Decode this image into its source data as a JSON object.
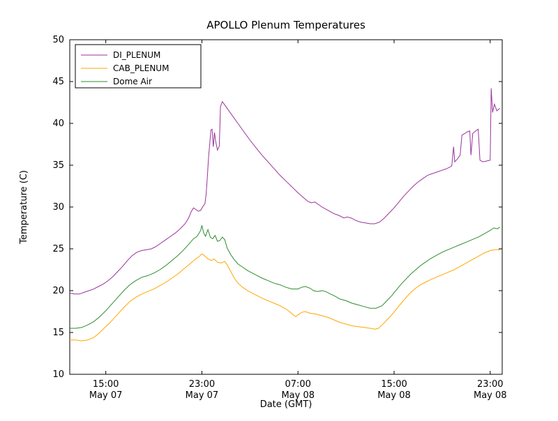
{
  "chart_data": {
    "type": "line",
    "title": "APOLLO Plenum Temperatures",
    "xlabel": "Date (GMT)",
    "ylabel": "Temperature (C)",
    "xlim": [
      0,
      36
    ],
    "ylim": [
      10,
      50
    ],
    "x_units": "hours from left edge of plot (left edge ~ May 07 12:00 GMT)",
    "grid": false,
    "legend_position": "upper left",
    "y_ticks": [
      10,
      15,
      20,
      25,
      30,
      35,
      40,
      45,
      50
    ],
    "x_ticks": [
      {
        "pos": 3,
        "time": "15:00",
        "date": "May 07"
      },
      {
        "pos": 11,
        "time": "23:00",
        "date": "May 07"
      },
      {
        "pos": 19,
        "time": "07:00",
        "date": "May 08"
      },
      {
        "pos": 27,
        "time": "15:00",
        "date": "May 08"
      },
      {
        "pos": 35,
        "time": "23:00",
        "date": "May 08"
      }
    ],
    "series": [
      {
        "name": "DI_PLENUM",
        "color": "#993399",
        "points": [
          [
            0,
            19.7
          ],
          [
            0.4,
            19.6
          ],
          [
            0.8,
            19.6
          ],
          [
            1.2,
            19.8
          ],
          [
            1.6,
            20.0
          ],
          [
            2.0,
            20.2
          ],
          [
            2.4,
            20.5
          ],
          [
            2.8,
            20.8
          ],
          [
            3.2,
            21.2
          ],
          [
            3.6,
            21.7
          ],
          [
            4.0,
            22.3
          ],
          [
            4.4,
            22.9
          ],
          [
            4.8,
            23.6
          ],
          [
            5.2,
            24.2
          ],
          [
            5.6,
            24.6
          ],
          [
            6.0,
            24.8
          ],
          [
            6.4,
            24.9
          ],
          [
            6.8,
            25.0
          ],
          [
            7.2,
            25.3
          ],
          [
            7.6,
            25.7
          ],
          [
            8.0,
            26.1
          ],
          [
            8.4,
            26.5
          ],
          [
            8.8,
            26.9
          ],
          [
            9.2,
            27.4
          ],
          [
            9.6,
            28.0
          ],
          [
            9.9,
            28.7
          ],
          [
            10.1,
            29.4
          ],
          [
            10.3,
            29.9
          ],
          [
            10.5,
            29.7
          ],
          [
            10.7,
            29.5
          ],
          [
            10.9,
            29.6
          ],
          [
            11.1,
            30.1
          ],
          [
            11.25,
            30.4
          ],
          [
            11.35,
            31.5
          ],
          [
            11.45,
            33.5
          ],
          [
            11.55,
            35.8
          ],
          [
            11.65,
            37.5
          ],
          [
            11.75,
            39.2
          ],
          [
            11.85,
            39.3
          ],
          [
            11.95,
            37.2
          ],
          [
            12.05,
            38.9
          ],
          [
            12.15,
            37.8
          ],
          [
            12.3,
            36.8
          ],
          [
            12.45,
            37.3
          ],
          [
            12.55,
            42.0
          ],
          [
            12.7,
            42.6
          ],
          [
            12.9,
            42.2
          ],
          [
            13.2,
            41.6
          ],
          [
            13.6,
            40.8
          ],
          [
            14.0,
            40.0
          ],
          [
            14.5,
            39.0
          ],
          [
            15.0,
            38.0
          ],
          [
            15.5,
            37.1
          ],
          [
            16.0,
            36.2
          ],
          [
            16.5,
            35.4
          ],
          [
            17.0,
            34.6
          ],
          [
            17.5,
            33.8
          ],
          [
            18.0,
            33.1
          ],
          [
            18.5,
            32.4
          ],
          [
            19.0,
            31.7
          ],
          [
            19.4,
            31.2
          ],
          [
            19.8,
            30.7
          ],
          [
            20.1,
            30.5
          ],
          [
            20.4,
            30.6
          ],
          [
            20.7,
            30.3
          ],
          [
            21.0,
            30.0
          ],
          [
            21.5,
            29.6
          ],
          [
            22.0,
            29.2
          ],
          [
            22.4,
            29.0
          ],
          [
            22.8,
            28.7
          ],
          [
            23.1,
            28.8
          ],
          [
            23.4,
            28.7
          ],
          [
            23.8,
            28.4
          ],
          [
            24.2,
            28.2
          ],
          [
            24.6,
            28.1
          ],
          [
            25.0,
            28.0
          ],
          [
            25.4,
            28.0
          ],
          [
            25.8,
            28.2
          ],
          [
            26.2,
            28.7
          ],
          [
            26.6,
            29.3
          ],
          [
            27.0,
            29.9
          ],
          [
            27.4,
            30.6
          ],
          [
            27.8,
            31.3
          ],
          [
            28.2,
            31.9
          ],
          [
            28.6,
            32.5
          ],
          [
            29.0,
            33.0
          ],
          [
            29.4,
            33.4
          ],
          [
            29.8,
            33.8
          ],
          [
            30.2,
            34.0
          ],
          [
            30.6,
            34.2
          ],
          [
            31.0,
            34.4
          ],
          [
            31.4,
            34.6
          ],
          [
            31.8,
            34.9
          ],
          [
            31.95,
            37.2
          ],
          [
            32.05,
            35.4
          ],
          [
            32.3,
            35.8
          ],
          [
            32.5,
            36.2
          ],
          [
            32.65,
            38.6
          ],
          [
            32.9,
            38.8
          ],
          [
            33.1,
            39.0
          ],
          [
            33.3,
            39.1
          ],
          [
            33.4,
            36.2
          ],
          [
            33.55,
            38.8
          ],
          [
            33.8,
            39.1
          ],
          [
            34.0,
            39.3
          ],
          [
            34.15,
            35.6
          ],
          [
            34.4,
            35.4
          ],
          [
            34.7,
            35.5
          ],
          [
            35.0,
            35.6
          ],
          [
            35.08,
            44.2
          ],
          [
            35.2,
            41.3
          ],
          [
            35.35,
            42.3
          ],
          [
            35.55,
            41.5
          ],
          [
            35.8,
            41.8
          ]
        ]
      },
      {
        "name": "CAB_PLENUM",
        "color": "#FFA500",
        "points": [
          [
            0,
            14.1
          ],
          [
            0.5,
            14.1
          ],
          [
            1.0,
            14.0
          ],
          [
            1.5,
            14.1
          ],
          [
            2.0,
            14.4
          ],
          [
            2.5,
            15.0
          ],
          [
            3.0,
            15.7
          ],
          [
            3.5,
            16.4
          ],
          [
            4.0,
            17.2
          ],
          [
            4.5,
            18.0
          ],
          [
            5.0,
            18.7
          ],
          [
            5.5,
            19.2
          ],
          [
            6.0,
            19.6
          ],
          [
            6.5,
            19.9
          ],
          [
            7.0,
            20.2
          ],
          [
            7.5,
            20.6
          ],
          [
            8.0,
            21.0
          ],
          [
            8.5,
            21.5
          ],
          [
            9.0,
            22.0
          ],
          [
            9.5,
            22.6
          ],
          [
            10.0,
            23.2
          ],
          [
            10.4,
            23.7
          ],
          [
            10.8,
            24.1
          ],
          [
            11.0,
            24.4
          ],
          [
            11.2,
            24.2
          ],
          [
            11.5,
            23.8
          ],
          [
            11.8,
            23.6
          ],
          [
            12.0,
            23.8
          ],
          [
            12.3,
            23.4
          ],
          [
            12.6,
            23.3
          ],
          [
            12.9,
            23.5
          ],
          [
            13.1,
            23.1
          ],
          [
            13.4,
            22.3
          ],
          [
            13.7,
            21.5
          ],
          [
            14.0,
            20.9
          ],
          [
            14.4,
            20.4
          ],
          [
            14.8,
            20.0
          ],
          [
            15.2,
            19.7
          ],
          [
            15.6,
            19.4
          ],
          [
            16.0,
            19.1
          ],
          [
            16.5,
            18.8
          ],
          [
            17.0,
            18.5
          ],
          [
            17.5,
            18.2
          ],
          [
            18.0,
            17.8
          ],
          [
            18.3,
            17.5
          ],
          [
            18.6,
            17.1
          ],
          [
            18.8,
            16.9
          ],
          [
            19.0,
            17.1
          ],
          [
            19.3,
            17.4
          ],
          [
            19.6,
            17.5
          ],
          [
            20.0,
            17.3
          ],
          [
            20.5,
            17.2
          ],
          [
            21.0,
            17.0
          ],
          [
            21.5,
            16.8
          ],
          [
            22.0,
            16.5
          ],
          [
            22.5,
            16.2
          ],
          [
            23.0,
            16.0
          ],
          [
            23.5,
            15.8
          ],
          [
            24.0,
            15.7
          ],
          [
            24.5,
            15.6
          ],
          [
            25.0,
            15.5
          ],
          [
            25.4,
            15.4
          ],
          [
            25.7,
            15.5
          ],
          [
            26.0,
            15.9
          ],
          [
            26.4,
            16.5
          ],
          [
            26.8,
            17.1
          ],
          [
            27.2,
            17.8
          ],
          [
            27.6,
            18.5
          ],
          [
            28.0,
            19.2
          ],
          [
            28.4,
            19.8
          ],
          [
            28.8,
            20.3
          ],
          [
            29.2,
            20.7
          ],
          [
            29.6,
            21.0
          ],
          [
            30.0,
            21.3
          ],
          [
            30.5,
            21.6
          ],
          [
            31.0,
            21.9
          ],
          [
            31.5,
            22.2
          ],
          [
            32.0,
            22.5
          ],
          [
            32.5,
            22.9
          ],
          [
            33.0,
            23.3
          ],
          [
            33.5,
            23.7
          ],
          [
            34.0,
            24.1
          ],
          [
            34.5,
            24.5
          ],
          [
            35.0,
            24.8
          ],
          [
            35.4,
            24.9
          ],
          [
            35.8,
            24.9
          ]
        ]
      },
      {
        "name": "Dome Air",
        "color": "#2E8B2E",
        "points": [
          [
            0,
            15.5
          ],
          [
            0.5,
            15.5
          ],
          [
            1.0,
            15.6
          ],
          [
            1.5,
            15.9
          ],
          [
            2.0,
            16.3
          ],
          [
            2.5,
            16.9
          ],
          [
            3.0,
            17.6
          ],
          [
            3.5,
            18.4
          ],
          [
            4.0,
            19.2
          ],
          [
            4.5,
            20.0
          ],
          [
            5.0,
            20.7
          ],
          [
            5.5,
            21.2
          ],
          [
            6.0,
            21.6
          ],
          [
            6.5,
            21.8
          ],
          [
            7.0,
            22.1
          ],
          [
            7.5,
            22.5
          ],
          [
            8.0,
            23.0
          ],
          [
            8.5,
            23.6
          ],
          [
            9.0,
            24.2
          ],
          [
            9.5,
            24.9
          ],
          [
            10.0,
            25.7
          ],
          [
            10.3,
            26.2
          ],
          [
            10.6,
            26.5
          ],
          [
            10.9,
            27.2
          ],
          [
            11.0,
            27.8
          ],
          [
            11.15,
            26.9
          ],
          [
            11.3,
            26.5
          ],
          [
            11.5,
            27.3
          ],
          [
            11.7,
            26.4
          ],
          [
            11.9,
            26.2
          ],
          [
            12.1,
            26.6
          ],
          [
            12.3,
            25.9
          ],
          [
            12.5,
            26.0
          ],
          [
            12.7,
            26.4
          ],
          [
            12.9,
            26.1
          ],
          [
            13.1,
            25.1
          ],
          [
            13.4,
            24.3
          ],
          [
            13.7,
            23.7
          ],
          [
            14.0,
            23.2
          ],
          [
            14.4,
            22.8
          ],
          [
            14.8,
            22.4
          ],
          [
            15.2,
            22.1
          ],
          [
            15.6,
            21.8
          ],
          [
            16.0,
            21.5
          ],
          [
            16.5,
            21.2
          ],
          [
            17.0,
            20.9
          ],
          [
            17.5,
            20.7
          ],
          [
            18.0,
            20.4
          ],
          [
            18.5,
            20.2
          ],
          [
            19.0,
            20.2
          ],
          [
            19.3,
            20.4
          ],
          [
            19.6,
            20.5
          ],
          [
            20.0,
            20.3
          ],
          [
            20.3,
            20.0
          ],
          [
            20.6,
            19.9
          ],
          [
            21.0,
            20.0
          ],
          [
            21.3,
            19.9
          ],
          [
            21.7,
            19.6
          ],
          [
            22.0,
            19.4
          ],
          [
            22.5,
            19.0
          ],
          [
            23.0,
            18.8
          ],
          [
            23.5,
            18.5
          ],
          [
            24.0,
            18.3
          ],
          [
            24.5,
            18.1
          ],
          [
            25.0,
            17.9
          ],
          [
            25.5,
            17.9
          ],
          [
            26.0,
            18.2
          ],
          [
            26.4,
            18.8
          ],
          [
            26.8,
            19.4
          ],
          [
            27.2,
            20.1
          ],
          [
            27.6,
            20.8
          ],
          [
            28.0,
            21.4
          ],
          [
            28.4,
            22.0
          ],
          [
            28.8,
            22.5
          ],
          [
            29.2,
            23.0
          ],
          [
            29.6,
            23.4
          ],
          [
            30.0,
            23.8
          ],
          [
            30.5,
            24.2
          ],
          [
            31.0,
            24.6
          ],
          [
            31.5,
            24.9
          ],
          [
            32.0,
            25.2
          ],
          [
            32.5,
            25.5
          ],
          [
            33.0,
            25.8
          ],
          [
            33.5,
            26.1
          ],
          [
            34.0,
            26.4
          ],
          [
            34.5,
            26.8
          ],
          [
            35.0,
            27.2
          ],
          [
            35.3,
            27.5
          ],
          [
            35.6,
            27.4
          ],
          [
            35.8,
            27.6
          ]
        ]
      }
    ]
  }
}
